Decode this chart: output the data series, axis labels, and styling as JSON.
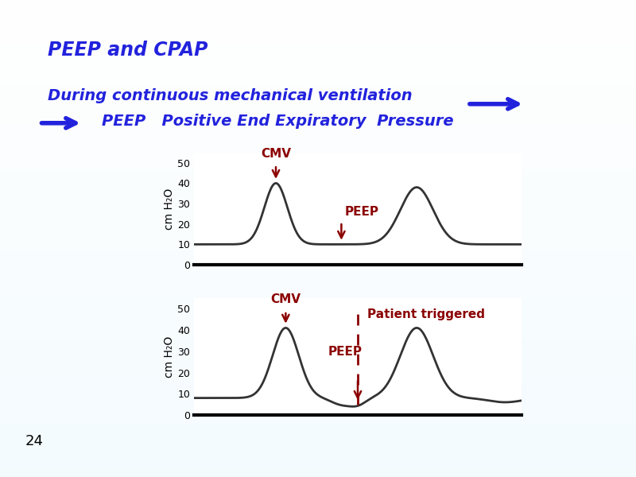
{
  "title": "PEEP and CPAP",
  "subtitle1": "During continuous mechanical ventilation",
  "subtitle2": "PEEP   Positive End Expiratory  Pressure",
  "title_color": "#2222DD",
  "bg_color_top": "#DCF0F8",
  "bg_color_bottom": "#C8E4F0",
  "panel_bg": "#FFFFFF",
  "slide_number": "24",
  "top_chart": {
    "yticks": [
      0,
      10,
      20,
      30,
      40,
      50
    ],
    "ylabel": "cm H₂O",
    "cmv_label": "CMV",
    "peep_label": "PEEP",
    "peep_level": 10,
    "baseline": 10
  },
  "bottom_chart": {
    "yticks": [
      0,
      10,
      20,
      30,
      40,
      50
    ],
    "ylabel": "cm H₂O",
    "cmv_label": "CMV",
    "peep_label": "PEEP",
    "patient_triggered_label": "Patient triggered",
    "peep_level": 6,
    "baseline": 8
  },
  "dark_red": "#8B0000",
  "blue": "#2222DD"
}
